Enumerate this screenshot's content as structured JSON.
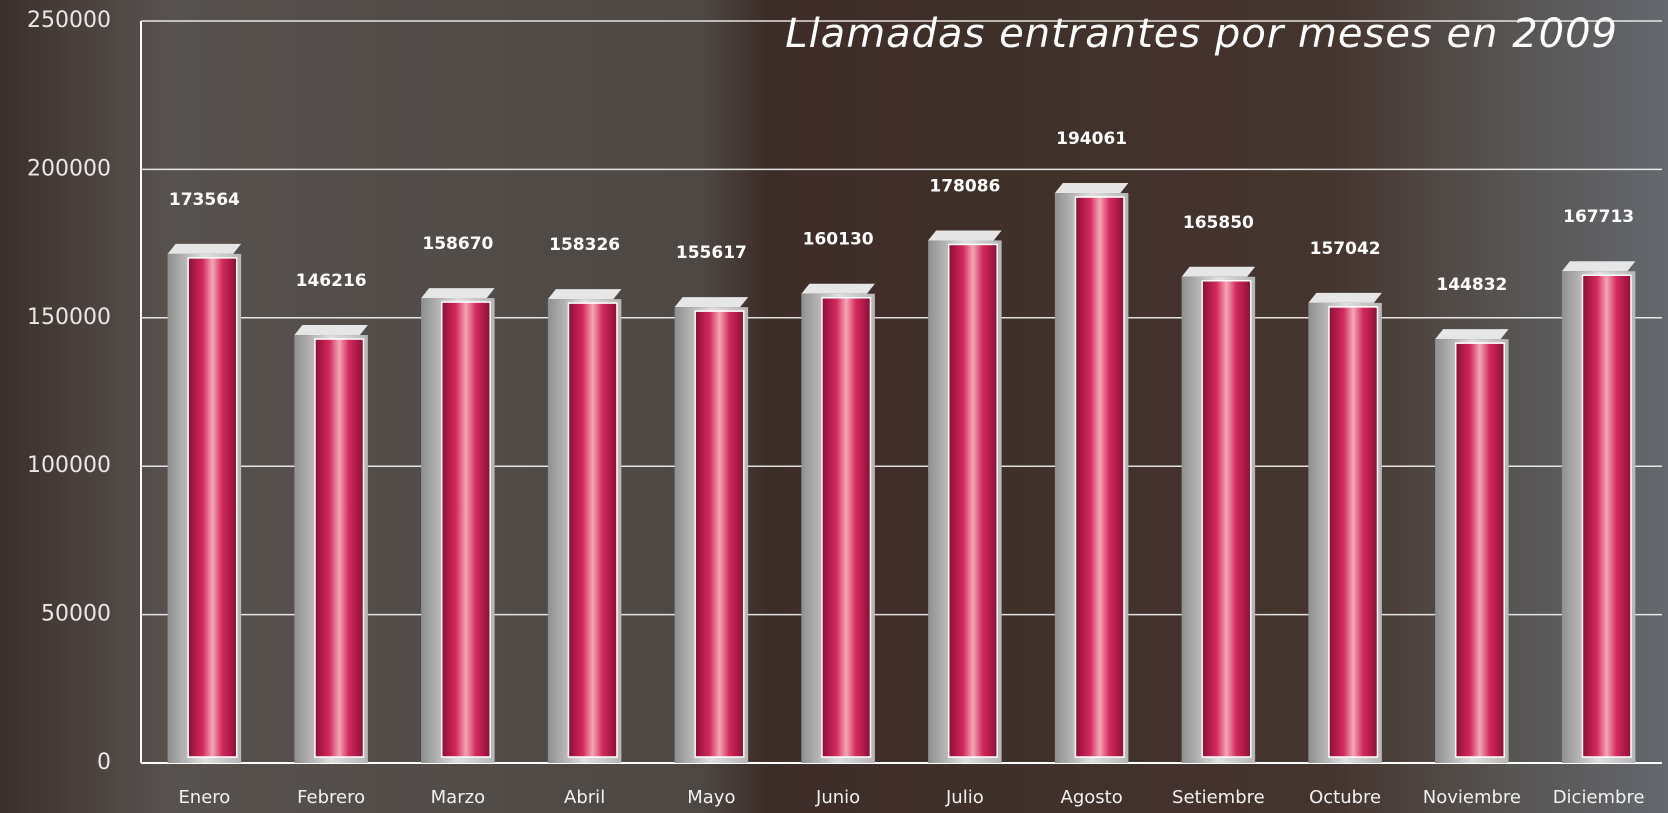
{
  "chart_data": {
    "type": "bar",
    "title": "Llamadas entrantes por meses en 2009",
    "categories": [
      "Enero",
      "Febrero",
      "Marzo",
      "Abril",
      "Mayo",
      "Junio",
      "Julio",
      "Agosto",
      "Setiembre",
      "Octubre",
      "Noviembre",
      "Diciembre"
    ],
    "values": [
      173564,
      146216,
      158670,
      158326,
      155617,
      160130,
      178086,
      194061,
      165850,
      157042,
      144832,
      167713
    ],
    "color": "#c8174f",
    "ylim": [
      0,
      250000
    ],
    "yticks": [
      0,
      50000,
      100000,
      150000,
      200000,
      250000
    ],
    "grid": true
  }
}
